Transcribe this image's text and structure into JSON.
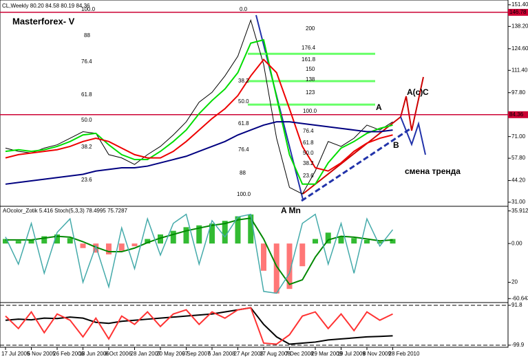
{
  "chart_data": [
    {
      "type": "line",
      "title": "CL,Weekly 80.20 84.58 80.19 84.36",
      "annotations": [
        "Masterforex- V",
        "100.0",
        "88",
        "76.4",
        "61.8",
        "50.0",
        "38.2",
        "23.6",
        "0.0",
        "38.2",
        "50.0",
        "61.8",
        "76.4",
        "88",
        "100.0",
        "200",
        "176.4",
        "161.8",
        "150",
        "138",
        "123",
        "100.0",
        "76.4",
        "61.8",
        "50.0",
        "38.2",
        "23.6",
        "A",
        "A(c)",
        "C",
        "B",
        "смена тренда",
        "A Mn"
      ],
      "categories": [
        "17 Jul 2005",
        null,
        "6 Nov 2005",
        null,
        "26 Feb 2006",
        null,
        "18 Jun 2006",
        null,
        "8 Oct 2006",
        null,
        "28 Jan 2007",
        null,
        "20 May 2007",
        null,
        "9 Sep 2007",
        null,
        "6 Jan 2008",
        null,
        "27 Apr 2008",
        null,
        "17 Aug 2008",
        null,
        "7 Dec 2008",
        null,
        "29 Mar 2009",
        null,
        "19 Jul 2009",
        null,
        "8 Nov 2009",
        null,
        "28 Feb 2010"
      ],
      "series": [
        {
          "name": "CL",
          "color": "#000000",
          "values": [
            64,
            62,
            61,
            64,
            66,
            70,
            74,
            73,
            60,
            58,
            54,
            60,
            65,
            72,
            80,
            92,
            98,
            108,
            120,
            142,
            115,
            70,
            40,
            36,
            50,
            68,
            65,
            70,
            78,
            75,
            80
          ]
        },
        {
          "name": "MA1",
          "color": "#00dd00",
          "values": [
            62,
            63,
            62,
            63,
            65,
            68,
            72,
            73,
            66,
            60,
            57,
            57,
            62,
            68,
            75,
            85,
            93,
            100,
            110,
            128,
            130,
            95,
            60,
            42,
            42,
            55,
            64,
            68,
            73,
            76,
            78
          ]
        },
        {
          "name": "MA2",
          "color": "#ee0000",
          "values": [
            58,
            60,
            61,
            62,
            63,
            65,
            68,
            70,
            68,
            64,
            60,
            58,
            58,
            62,
            68,
            75,
            82,
            88,
            96,
            108,
            118,
            110,
            88,
            65,
            52,
            50,
            55,
            62,
            67,
            70,
            72
          ]
        },
        {
          "name": "MA3",
          "color": "#000080",
          "values": [
            42,
            43,
            44,
            45,
            46,
            47,
            48,
            50,
            51,
            52,
            52,
            53,
            55,
            57,
            59,
            62,
            65,
            68,
            72,
            75,
            78,
            80,
            80,
            79,
            78,
            77,
            76,
            75,
            74,
            74,
            75
          ]
        }
      ],
      "levels": [
        {
          "value": 146.78,
          "label": "146.78"
        },
        {
          "value": 84.36,
          "label": "84.36"
        }
      ],
      "level_color": "#cc0033",
      "fib_levels": [
        121.5,
        104.8,
        90.5
      ],
      "fib_color": "#66ff66",
      "ylim": [
        28.5,
        154.3
      ],
      "yticks": [
        {
          "value": 151.4,
          "label": "151.40"
        },
        {
          "value": 138.2,
          "label": "138.20"
        },
        {
          "value": 124.6,
          "label": "124.60"
        },
        {
          "value": 111.4,
          "label": "111.40"
        },
        {
          "value": 97.8,
          "label": "97.80"
        },
        {
          "value": 71,
          "label": "71.00"
        },
        {
          "value": 57.8,
          "label": "57.80"
        },
        {
          "value": 44.2,
          "label": "44.20"
        },
        {
          "value": 31,
          "label": "31.00"
        }
      ]
    },
    {
      "type": "oscillator",
      "title": "AOcolor_Zotik 5.416 Stoch(5,3,3) 78.4995 75.7287",
      "series": [
        {
          "name": "AO",
          "color": "#00aa00",
          "negative_color": "#ff5555",
          "values": [
            5,
            3,
            4,
            8,
            10,
            6,
            -5,
            -10,
            -12,
            -8,
            -3,
            5,
            10,
            14,
            18,
            20,
            22,
            25,
            30,
            32,
            -30,
            -55,
            -50,
            -25,
            5,
            12,
            8,
            6,
            4,
            2,
            5
          ]
        },
        {
          "name": "Signal",
          "color": "#008800",
          "values": [
            4,
            4,
            4,
            6,
            8,
            7,
            2,
            -4,
            -9,
            -9,
            -5,
            1,
            6,
            10,
            14,
            17,
            20,
            22,
            26,
            28,
            5,
            -25,
            -45,
            -40,
            -15,
            4,
            8,
            7,
            5,
            3,
            4
          ]
        },
        {
          "name": "Stoch",
          "color": "#44aaaa",
          "axis": "y2",
          "values": [
            70,
            40,
            85,
            30,
            75,
            90,
            20,
            60,
            15,
            80,
            35,
            90,
            50,
            85,
            95,
            40,
            88,
            70,
            92,
            95,
            10,
            8,
            30,
            85,
            95,
            40,
            85,
            30,
            90,
            60,
            78
          ]
        }
      ],
      "ylim": [
        -65,
        41
      ],
      "yticks": [
        {
          "value": 35.912,
          "label": "35.912"
        },
        {
          "value": 0,
          "label": "0.00"
        },
        {
          "value": -60.643,
          "label": "-60.643"
        }
      ],
      "y2lim": [
        0,
        100
      ],
      "y2ticks": [
        20
      ]
    },
    {
      "type": "line",
      "series": [
        {
          "name": "Line1",
          "color": "#000000",
          "values": [
            20,
            25,
            22,
            30,
            28,
            35,
            30,
            10,
            5,
            15,
            20,
            25,
            30,
            35,
            40,
            45,
            50,
            60,
            70,
            80,
            0,
            -60,
            -95,
            -90,
            -85,
            -75,
            -70,
            -65,
            -60,
            -58,
            -55
          ]
        },
        {
          "name": "Line2",
          "color": "#ff3333",
          "values": [
            40,
            -20,
            60,
            -40,
            50,
            20,
            -60,
            30,
            -70,
            40,
            0,
            60,
            -10,
            50,
            70,
            0,
            60,
            30,
            70,
            80,
            -90,
            -95,
            -50,
            40,
            60,
            -20,
            50,
            -30,
            60,
            20,
            50
          ]
        }
      ],
      "ylim": [
        -110,
        105
      ],
      "yticks": [
        {
          "value": 91.8,
          "label": "91.8"
        },
        {
          "value": -99.9,
          "label": "-99.9"
        }
      ]
    }
  ]
}
